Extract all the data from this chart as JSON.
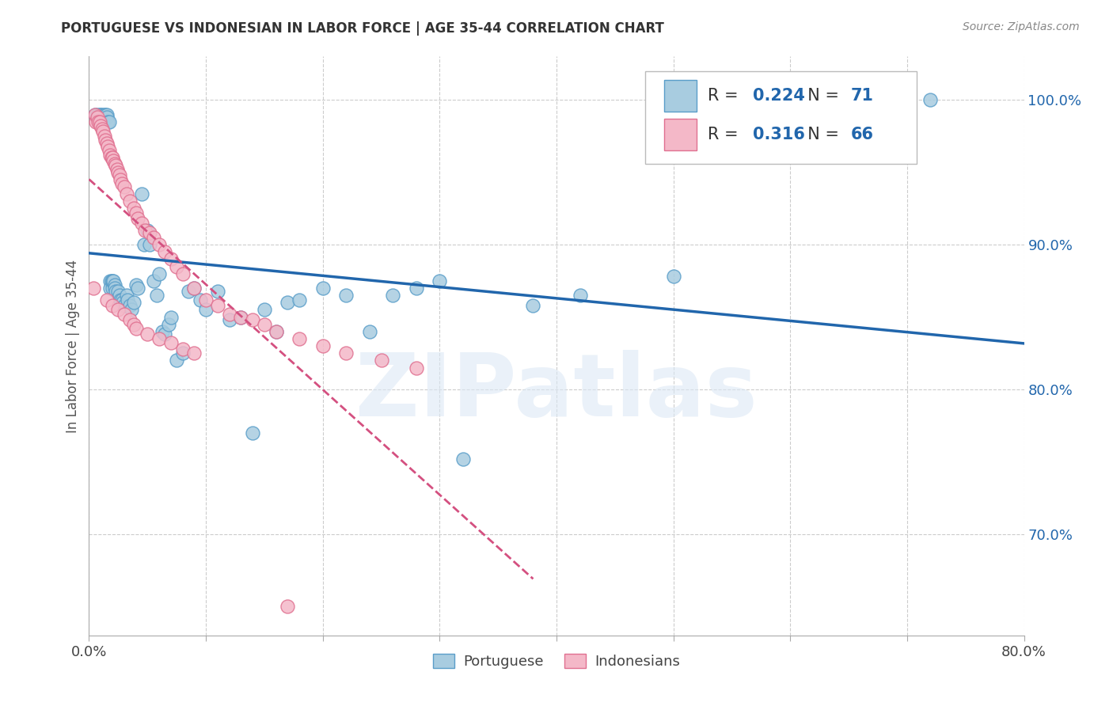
{
  "title": "PORTUGUESE VS INDONESIAN IN LABOR FORCE | AGE 35-44 CORRELATION CHART",
  "source": "Source: ZipAtlas.com",
  "ylabel": "In Labor Force | Age 35-44",
  "xlim": [
    0.0,
    0.8
  ],
  "ylim": [
    0.63,
    1.03
  ],
  "xticks": [
    0.0,
    0.1,
    0.2,
    0.3,
    0.4,
    0.5,
    0.6,
    0.7,
    0.8
  ],
  "yticks_right": [
    0.7,
    0.8,
    0.9,
    1.0
  ],
  "ytick_right_labels": [
    "70.0%",
    "80.0%",
    "90.0%",
    "100.0%"
  ],
  "blue_color": "#a8cce0",
  "blue_edge_color": "#5a9ec9",
  "blue_line_color": "#2166ac",
  "pink_color": "#f4b8c8",
  "pink_edge_color": "#e07090",
  "pink_line_color": "#d45080",
  "pink_dash_color": "#d45080",
  "label_color": "#2166ac",
  "r_blue": "0.224",
  "n_blue": "71",
  "r_pink": "0.316",
  "n_pink": "66",
  "watermark": "ZIPatlas",
  "blue_scatter_x": [
    0.005,
    0.007,
    0.009,
    0.01,
    0.01,
    0.011,
    0.012,
    0.013,
    0.014,
    0.015,
    0.015,
    0.016,
    0.017,
    0.018,
    0.018,
    0.019,
    0.02,
    0.02,
    0.021,
    0.022,
    0.022,
    0.023,
    0.025,
    0.026,
    0.027,
    0.028,
    0.029,
    0.03,
    0.032,
    0.033,
    0.035,
    0.036,
    0.038,
    0.04,
    0.042,
    0.045,
    0.047,
    0.05,
    0.052,
    0.055,
    0.058,
    0.06,
    0.063,
    0.065,
    0.068,
    0.07,
    0.075,
    0.08,
    0.085,
    0.09,
    0.095,
    0.1,
    0.11,
    0.12,
    0.13,
    0.14,
    0.15,
    0.16,
    0.17,
    0.18,
    0.2,
    0.22,
    0.24,
    0.26,
    0.28,
    0.3,
    0.32,
    0.38,
    0.42,
    0.5,
    0.72
  ],
  "blue_scatter_y": [
    0.99,
    0.99,
    0.99,
    0.99,
    0.985,
    0.99,
    0.985,
    0.99,
    0.99,
    0.99,
    0.988,
    0.985,
    0.985,
    0.875,
    0.87,
    0.875,
    0.87,
    0.875,
    0.875,
    0.872,
    0.87,
    0.868,
    0.868,
    0.865,
    0.862,
    0.862,
    0.86,
    0.858,
    0.865,
    0.862,
    0.858,
    0.855,
    0.86,
    0.872,
    0.87,
    0.935,
    0.9,
    0.91,
    0.9,
    0.875,
    0.865,
    0.88,
    0.84,
    0.838,
    0.845,
    0.85,
    0.82,
    0.825,
    0.868,
    0.87,
    0.862,
    0.855,
    0.868,
    0.848,
    0.85,
    0.77,
    0.855,
    0.84,
    0.86,
    0.862,
    0.87,
    0.865,
    0.84,
    0.865,
    0.87,
    0.875,
    0.752,
    0.858,
    0.865,
    0.878,
    1.0
  ],
  "pink_scatter_x": [
    0.004,
    0.005,
    0.006,
    0.007,
    0.008,
    0.009,
    0.01,
    0.011,
    0.012,
    0.013,
    0.014,
    0.015,
    0.016,
    0.017,
    0.018,
    0.019,
    0.02,
    0.021,
    0.022,
    0.023,
    0.024,
    0.025,
    0.026,
    0.027,
    0.028,
    0.03,
    0.032,
    0.035,
    0.038,
    0.04,
    0.042,
    0.045,
    0.048,
    0.052,
    0.055,
    0.06,
    0.065,
    0.07,
    0.075,
    0.08,
    0.09,
    0.1,
    0.11,
    0.12,
    0.13,
    0.14,
    0.15,
    0.16,
    0.18,
    0.2,
    0.22,
    0.25,
    0.28,
    0.015,
    0.02,
    0.025,
    0.03,
    0.035,
    0.038,
    0.04,
    0.05,
    0.06,
    0.07,
    0.08,
    0.09,
    0.17
  ],
  "pink_scatter_y": [
    0.87,
    0.99,
    0.985,
    0.988,
    0.985,
    0.985,
    0.982,
    0.98,
    0.978,
    0.975,
    0.972,
    0.97,
    0.968,
    0.965,
    0.962,
    0.96,
    0.96,
    0.958,
    0.956,
    0.955,
    0.952,
    0.95,
    0.948,
    0.945,
    0.942,
    0.94,
    0.935,
    0.93,
    0.925,
    0.922,
    0.918,
    0.915,
    0.91,
    0.908,
    0.905,
    0.9,
    0.895,
    0.89,
    0.885,
    0.88,
    0.87,
    0.862,
    0.858,
    0.852,
    0.85,
    0.848,
    0.845,
    0.84,
    0.835,
    0.83,
    0.825,
    0.82,
    0.815,
    0.862,
    0.858,
    0.855,
    0.852,
    0.848,
    0.845,
    0.842,
    0.838,
    0.835,
    0.832,
    0.828,
    0.825,
    0.65
  ]
}
